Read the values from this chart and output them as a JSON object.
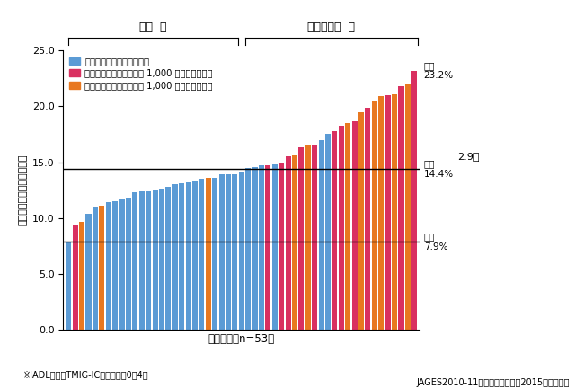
{
  "ylim": [
    0.0,
    25.0
  ],
  "yticks": [
    0.0,
    5.0,
    10.0,
    15.0,
    20.0,
    25.0
  ],
  "avg_line": 14.4,
  "min_line": 7.9,
  "max_val": 23.2,
  "color_blue": "#5B9BD5",
  "color_pink": "#D93060",
  "color_orange": "#E87820",
  "legend_labels": [
    "都市：政令指定都市内の区",
    "郊外：可住地人口密度が 1,000 人以上の市町村",
    "農村：可住地人口密度が 1,000 人未満の市町村"
  ],
  "bar_values": [
    7.9,
    9.4,
    9.7,
    10.4,
    11.0,
    11.1,
    11.4,
    11.5,
    11.7,
    11.8,
    12.3,
    12.4,
    12.4,
    12.5,
    12.6,
    12.8,
    13.0,
    13.1,
    13.2,
    13.3,
    13.5,
    13.6,
    13.6,
    13.9,
    13.9,
    13.9,
    14.1,
    14.5,
    14.6,
    14.7,
    14.7,
    14.8,
    15.0,
    15.5,
    15.6,
    16.3,
    16.5,
    16.5,
    17.0,
    17.5,
    17.8,
    18.3,
    18.5,
    18.7,
    19.5,
    19.9,
    20.5,
    20.9,
    21.0,
    21.1,
    21.8,
    22.0,
    23.2
  ],
  "bar_colors_key": [
    "blue",
    "pink",
    "orange",
    "blue",
    "blue",
    "orange",
    "blue",
    "blue",
    "blue",
    "blue",
    "blue",
    "blue",
    "blue",
    "blue",
    "blue",
    "blue",
    "blue",
    "blue",
    "blue",
    "blue",
    "blue",
    "orange",
    "blue",
    "blue",
    "blue",
    "blue",
    "blue",
    "blue",
    "blue",
    "blue",
    "pink",
    "blue",
    "pink",
    "pink",
    "orange",
    "pink",
    "orange",
    "pink",
    "blue",
    "blue",
    "pink",
    "pink",
    "orange",
    "pink",
    "orange",
    "pink",
    "orange",
    "orange",
    "pink",
    "orange",
    "pink",
    "orange",
    "pink"
  ],
  "bracket_split": 26,
  "top_label_left": "都市  多",
  "top_label_right": "郊外・農村  多",
  "xlabel": "市区町村（n=53）",
  "ylabel": "ＩＡＤＬ低下者割合（％）",
  "footnote1": "※IADL低下：TMIG-IC手段的自立0～4点",
  "footnote2": "JAGES2010-11（加藤清人ほか、2015から作成）",
  "ann_max_label": "最高",
  "ann_max_val": "23.2%",
  "ann_avg_label": "平均",
  "ann_avg_val": "14.4%",
  "ann_min_label": "最低",
  "ann_min_val": "7.9%",
  "ann_ratio": "2.9倍"
}
